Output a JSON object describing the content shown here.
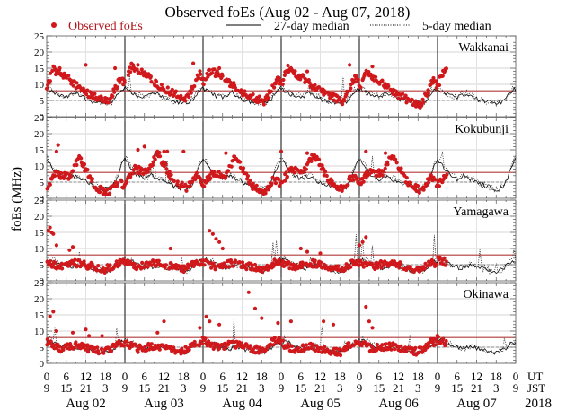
{
  "chart_data": {
    "type": "scatter",
    "title": "Observed foEs (Aug 02 - Aug 07, 2018)",
    "ylabel": "foEs (MHz)",
    "xlabel": "",
    "ylim": [
      0,
      25
    ],
    "yticks": [
      0,
      5,
      10,
      15,
      20,
      25
    ],
    "y_reference_lines": {
      "red_solid": 8,
      "grey_dashed": 5
    },
    "grid": true,
    "legend": [
      {
        "label": "Observed foEs",
        "marker": "red-dot",
        "color": "#d0191c"
      },
      {
        "label": "27-day median",
        "marker": "solid-line",
        "color": "#000000"
      },
      {
        "label": "5-day median",
        "marker": "dotted-line",
        "color": "#000000"
      }
    ],
    "legend_position": "top",
    "x_axis": {
      "ut_label": "UT",
      "jst_label": "JST",
      "year_label": "2018",
      "days": [
        "Aug 02",
        "Aug 03",
        "Aug 04",
        "Aug 05",
        "Aug 06",
        "Aug 07"
      ],
      "ut_ticks": [
        "0",
        "6",
        "12",
        "18"
      ],
      "jst_ticks": [
        "9",
        "15",
        "21",
        "3"
      ],
      "end_ut": "0",
      "end_jst": "9",
      "observed_until_hours": 123
    },
    "panels": [
      {
        "station": "Wakkanai",
        "median27_hourly": [
          8.5,
          8,
          7.5,
          7,
          6.5,
          6.2,
          6,
          6.5,
          7,
          7.2,
          6.8,
          6.2,
          5.5,
          5,
          4.8,
          4.6,
          4.4,
          4.3,
          4.2,
          4.3,
          4.6,
          5.5,
          7,
          8.3
        ],
        "obs_daily_peak": [
          [
            0,
            9
          ],
          [
            2,
            14
          ],
          [
            7,
            11
          ],
          [
            12,
            7
          ],
          [
            19,
            4
          ],
          [
            23,
            12
          ]
        ],
        "obs_offset_by_day": [
          0.5,
          1.5,
          0.5,
          0.8,
          -0.5,
          0.5
        ],
        "obs_high_outliers": [
          [
            4,
            15
          ],
          [
            12,
            16
          ],
          [
            21,
            15
          ],
          [
            26.5,
            16
          ],
          [
            28,
            16
          ],
          [
            45,
            16.5
          ],
          [
            50,
            13
          ],
          [
            53,
            15
          ],
          [
            75,
            15
          ],
          [
            80,
            14
          ],
          [
            93,
            16
          ],
          [
            100,
            15.5
          ],
          [
            103,
            11
          ]
        ]
      },
      {
        "station": "Kokubunji",
        "median27_hourly": [
          12,
          11,
          9,
          8,
          7,
          6.5,
          6,
          6.5,
          7,
          6.5,
          6,
          5.5,
          5,
          4.5,
          4.2,
          3.8,
          3.5,
          3,
          2.8,
          3,
          3.5,
          5,
          7.5,
          10.5
        ],
        "obs_daily_peak": [
          [
            0,
            4
          ],
          [
            3,
            8
          ],
          [
            7,
            7
          ],
          [
            10,
            13
          ],
          [
            15,
            4
          ],
          [
            19,
            2
          ],
          [
            22,
            6
          ]
        ],
        "obs_offset_by_day": [
          -0.5,
          1,
          0,
          1,
          0.5,
          0
        ],
        "obs_high_outliers": [
          [
            3,
            14.5
          ],
          [
            3.5,
            16.5
          ],
          [
            28,
            15
          ],
          [
            30,
            16
          ],
          [
            34,
            14.5
          ],
          [
            36,
            14.5
          ],
          [
            37,
            14.5
          ],
          [
            42,
            14.5
          ],
          [
            55,
            14
          ],
          [
            72,
            14.5
          ],
          [
            80,
            14
          ],
          [
            98,
            14.5
          ],
          [
            104,
            14
          ]
        ]
      },
      {
        "station": "Yamagawa",
        "median27_hourly": [
          6,
          6.5,
          6.2,
          5.5,
          5,
          4.5,
          4.2,
          4,
          4.2,
          4.5,
          4.8,
          4.6,
          4.3,
          4,
          3.8,
          3.5,
          3.2,
          3,
          2.8,
          3,
          3.5,
          4.5,
          5.5,
          6
        ],
        "obs_daily_peak": [
          [
            0,
            5
          ],
          [
            4,
            4
          ],
          [
            9,
            5
          ],
          [
            14,
            4
          ],
          [
            18,
            3
          ],
          [
            22,
            5
          ]
        ],
        "obs_offset_by_day": [
          0.5,
          0.5,
          0.5,
          0.5,
          0.5,
          1.5
        ],
        "obs_high_outliers": [
          [
            0.5,
            15.5
          ],
          [
            1,
            16.5
          ],
          [
            1.5,
            15
          ],
          [
            2,
            14.5
          ],
          [
            3,
            11
          ],
          [
            7,
            9.5
          ],
          [
            8,
            10.5
          ],
          [
            38,
            10
          ],
          [
            50,
            15.5
          ],
          [
            51,
            14.5
          ],
          [
            52,
            13
          ],
          [
            53,
            12
          ],
          [
            54,
            10
          ],
          [
            78,
            10
          ],
          [
            80,
            9
          ],
          [
            84,
            8.5
          ],
          [
            96,
            11
          ],
          [
            97,
            12
          ],
          [
            98,
            13.5
          ]
        ]
      },
      {
        "station": "Okinawa",
        "median27_hourly": [
          6.5,
          7,
          6.8,
          6,
          5.5,
          5,
          4.8,
          4.5,
          4.5,
          4.7,
          5,
          5,
          4.6,
          4.3,
          4,
          3.8,
          3.6,
          3.5,
          3.4,
          3.6,
          4,
          4.8,
          5.8,
          6.5
        ],
        "obs_daily_peak": [
          [
            0,
            6
          ],
          [
            4,
            4
          ],
          [
            9,
            5
          ],
          [
            13,
            4
          ],
          [
            18,
            3
          ],
          [
            22,
            6
          ]
        ],
        "obs_offset_by_day": [
          0.5,
          0.5,
          1,
          0.3,
          0.5,
          1.5
        ],
        "obs_high_outliers": [
          [
            1,
            14.5
          ],
          [
            2,
            16
          ],
          [
            3,
            10
          ],
          [
            8,
            9.5
          ],
          [
            12,
            10.5
          ],
          [
            13,
            8.5
          ],
          [
            17,
            8.5
          ],
          [
            34,
            9.5
          ],
          [
            36,
            13
          ],
          [
            47,
            11
          ],
          [
            49,
            14.5
          ],
          [
            50,
            13
          ],
          [
            53,
            12
          ],
          [
            62,
            22
          ],
          [
            64,
            17
          ],
          [
            66,
            14
          ],
          [
            71,
            12.5
          ],
          [
            75,
            13
          ],
          [
            85,
            13
          ],
          [
            88,
            12
          ],
          [
            98,
            17.5
          ],
          [
            99,
            13
          ],
          [
            100,
            11
          ]
        ]
      }
    ]
  }
}
